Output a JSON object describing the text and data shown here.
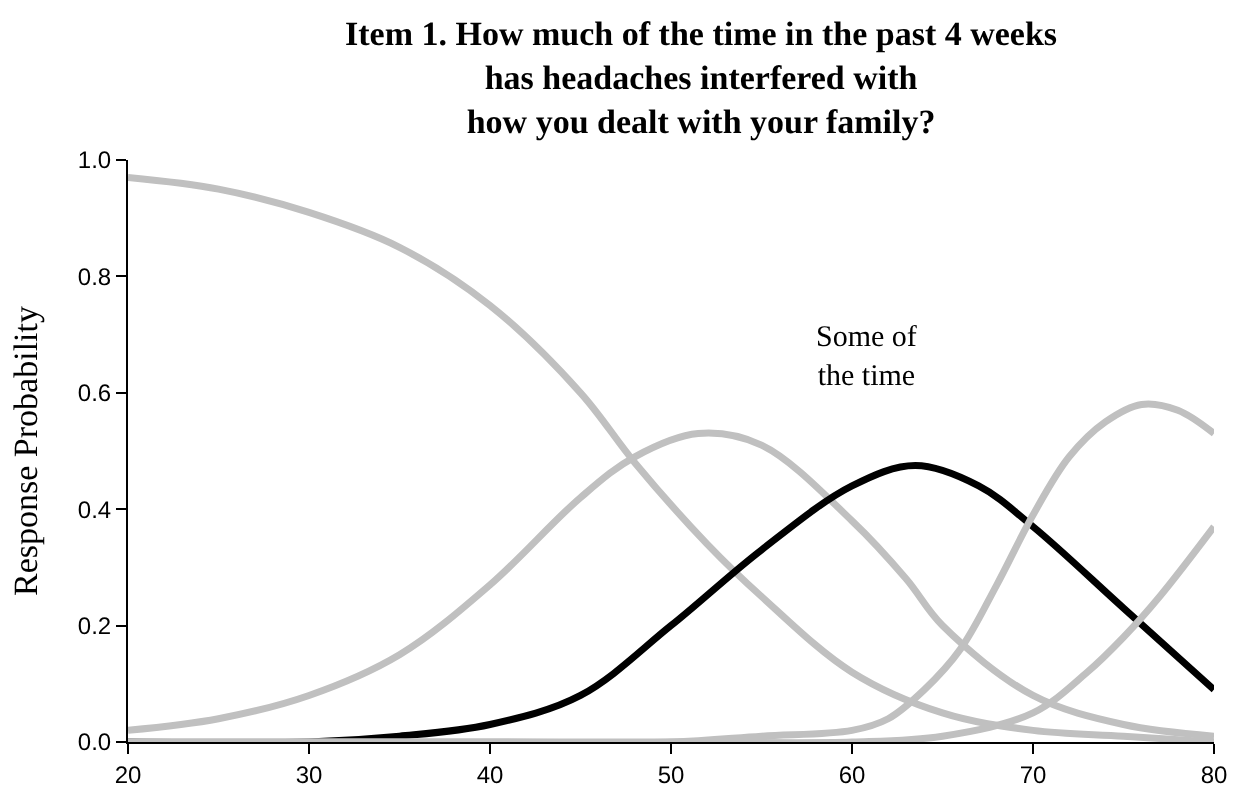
{
  "chart_data": {
    "type": "line",
    "title": "Item 1. How much of the time in the past 4 weeks\nhas headaches interfered with\nhow you dealt with your family?",
    "ylabel": "Response Probability",
    "annotations": [
      "Some of\nthe time"
    ],
    "series": [
      {
        "color": "#c0c0c0",
        "x": [
          20,
          25,
          30,
          35,
          40,
          45,
          48,
          52,
          55,
          60,
          65,
          70,
          75,
          80
        ],
        "values": [
          0.97,
          0.95,
          0.91,
          0.85,
          0.75,
          0.6,
          0.48,
          0.34,
          0.25,
          0.12,
          0.05,
          0.02,
          0.01,
          0.0
        ]
      },
      {
        "color": "#c0c0c0",
        "x": [
          20,
          25,
          30,
          35,
          40,
          45,
          48,
          51.5,
          55,
          60,
          63,
          65,
          70,
          75,
          80
        ],
        "values": [
          0.02,
          0.04,
          0.08,
          0.15,
          0.27,
          0.42,
          0.49,
          0.53,
          0.51,
          0.38,
          0.28,
          0.2,
          0.08,
          0.03,
          0.01
        ]
      },
      {
        "color": "#000000",
        "x": [
          20,
          30,
          35,
          40,
          45,
          50,
          55,
          60,
          63.5,
          67,
          70,
          75,
          80
        ],
        "values": [
          0.0,
          0.0,
          0.01,
          0.03,
          0.08,
          0.2,
          0.33,
          0.44,
          0.475,
          0.44,
          0.37,
          0.23,
          0.09
        ]
      },
      {
        "color": "#c0c0c0",
        "x": [
          20,
          40,
          50,
          55,
          60,
          62,
          64,
          66,
          68,
          70,
          72,
          74,
          76,
          78,
          80
        ],
        "values": [
          0.0,
          0.0,
          0.0,
          0.01,
          0.02,
          0.04,
          0.09,
          0.16,
          0.27,
          0.39,
          0.49,
          0.55,
          0.58,
          0.57,
          0.53
        ]
      },
      {
        "color": "#c0c0c0",
        "x": [
          20,
          50,
          60,
          65,
          70,
          73,
          75,
          77,
          80
        ],
        "values": [
          0.0,
          0.0,
          0.0,
          0.01,
          0.05,
          0.12,
          0.18,
          0.25,
          0.37
        ]
      }
    ],
    "xlim": [
      20,
      80
    ],
    "xticks": [
      20,
      30,
      40,
      50,
      60,
      70,
      80
    ],
    "ylim": [
      0,
      1
    ],
    "yticks": [
      {
        "value": 0,
        "label": "0.0"
      },
      {
        "value": 0.2,
        "label": "0.2"
      },
      {
        "value": 0.4,
        "label": "0.4"
      },
      {
        "value": 0.6,
        "label": "0.6"
      },
      {
        "value": 0.8,
        "label": "0.8"
      },
      {
        "value": 1,
        "label": "1.0"
      }
    ],
    "marker": "none",
    "line_style": "solid"
  }
}
